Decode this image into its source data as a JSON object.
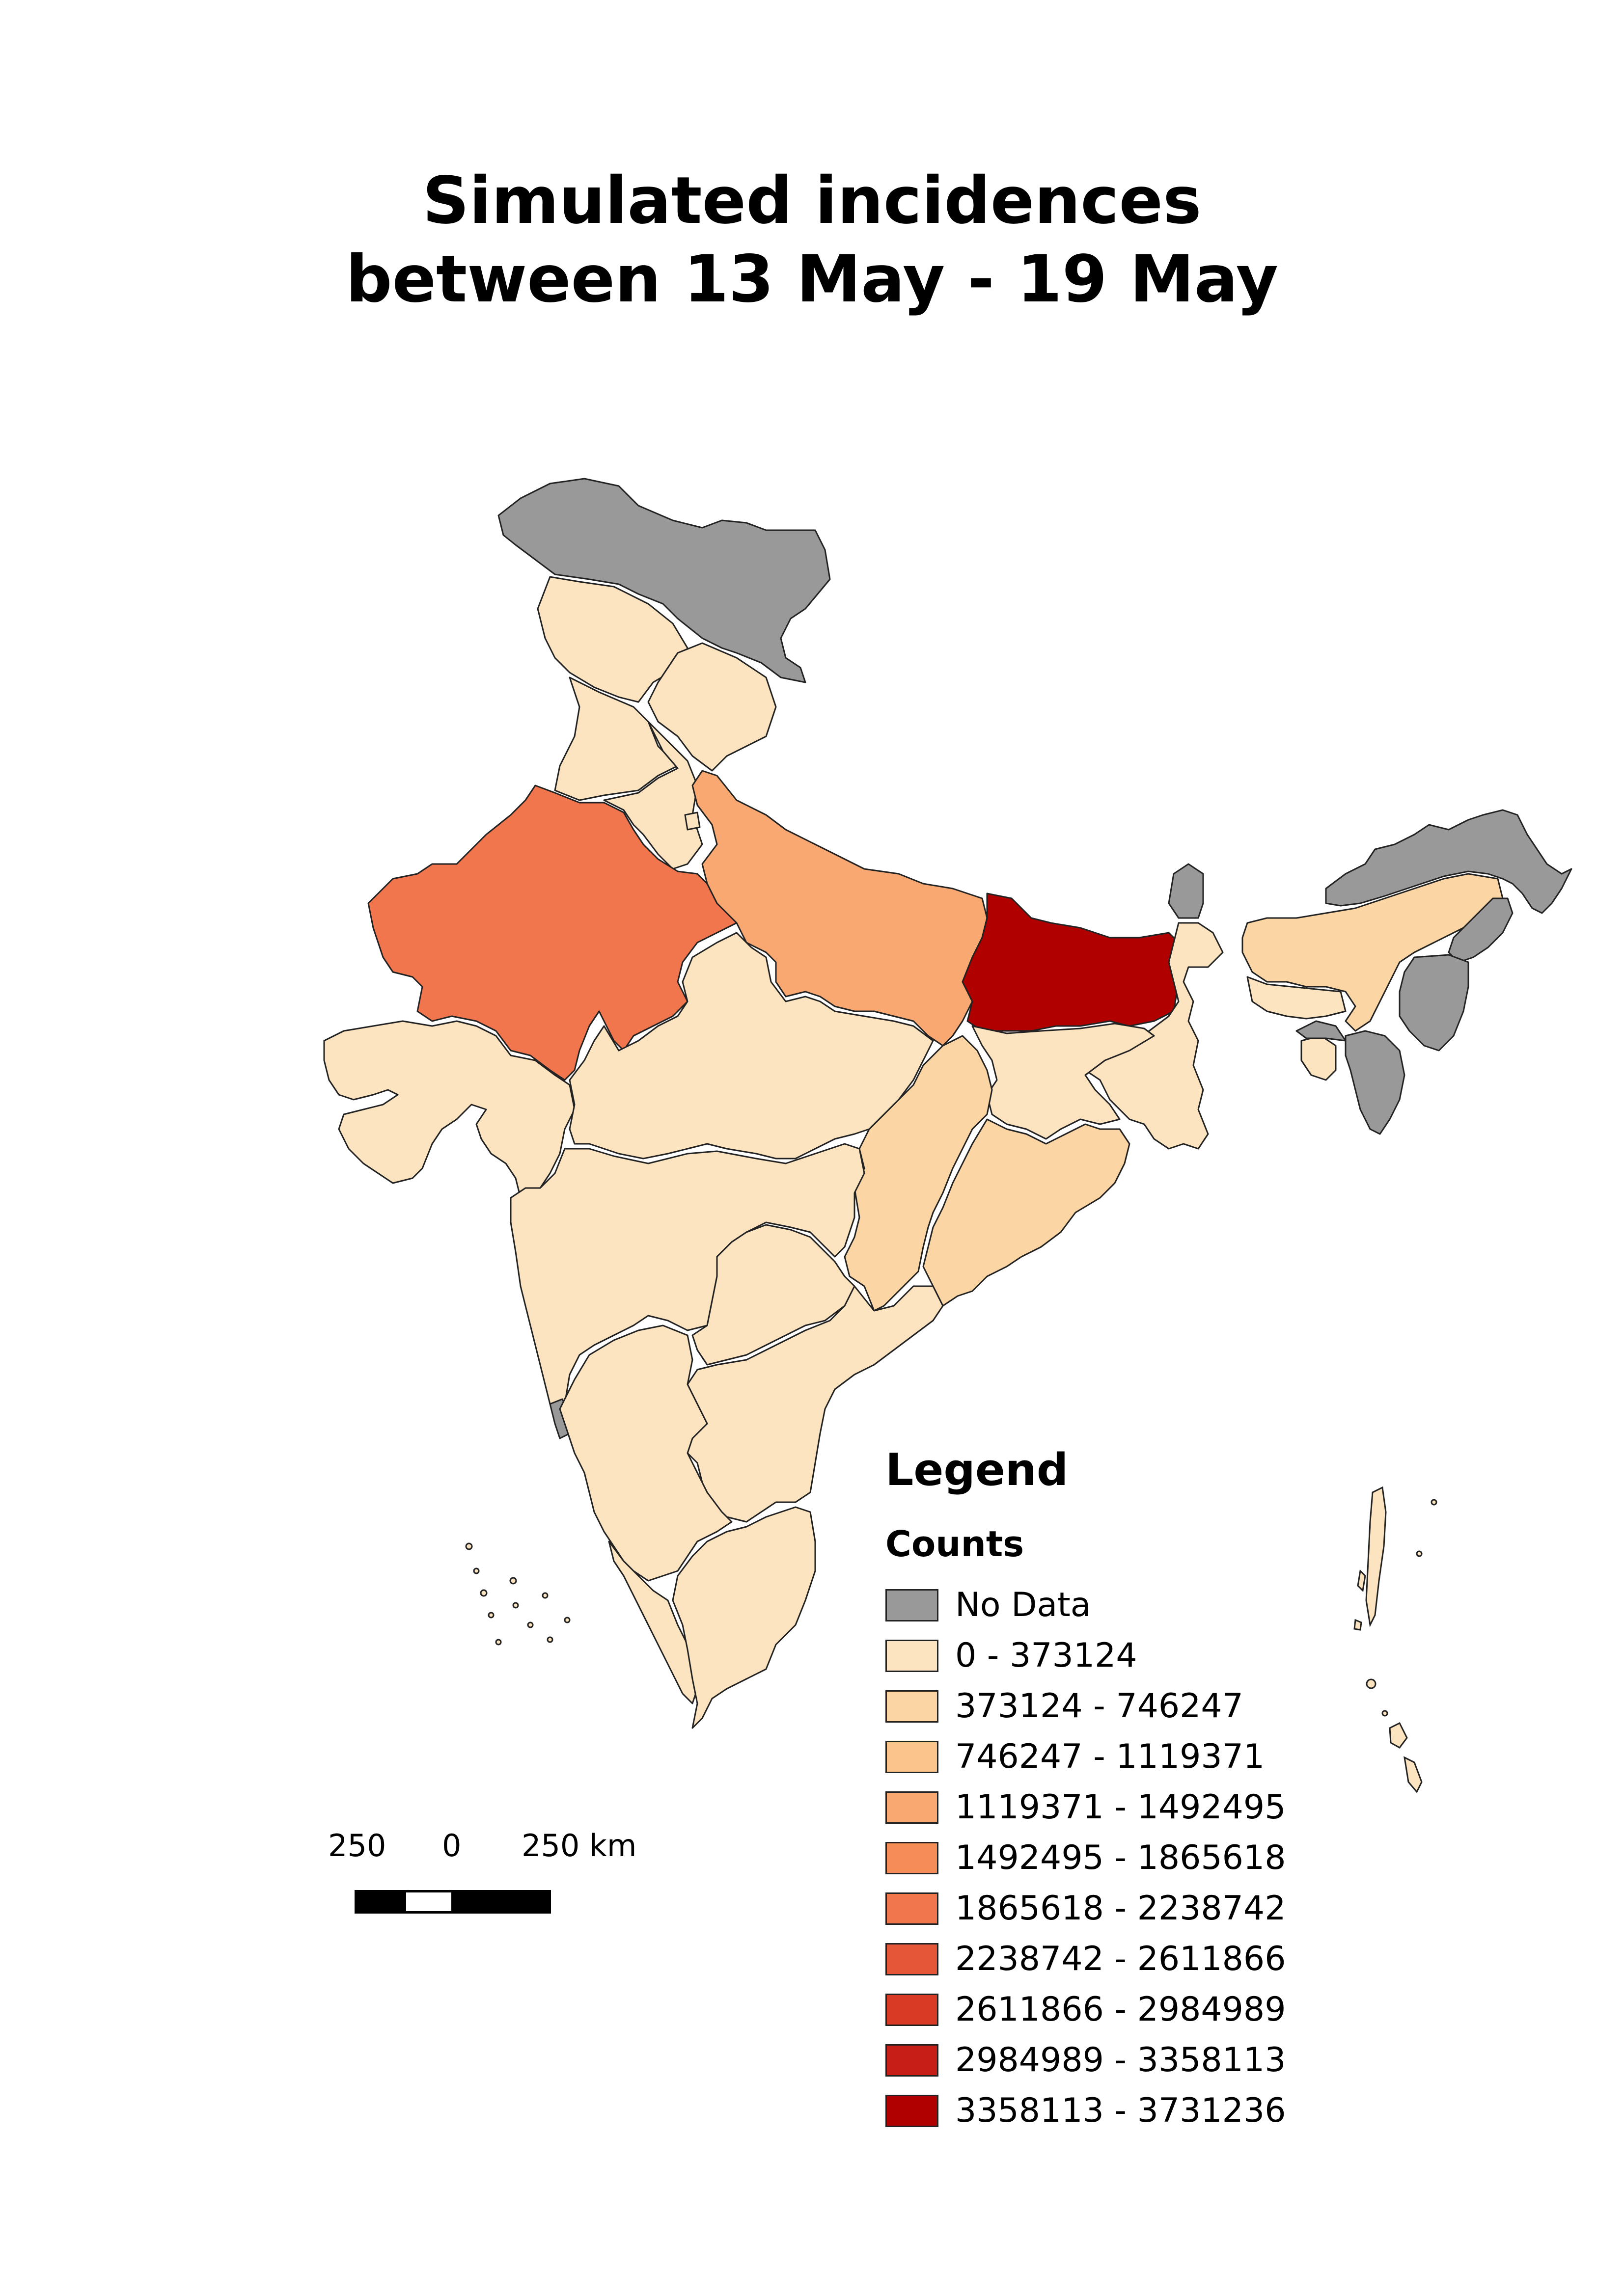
{
  "title": {
    "line1": "Simulated incidences",
    "line2": "between 13 May - 19 May"
  },
  "legend": {
    "heading": "Legend",
    "subheading": "Counts",
    "items": [
      {
        "label": "No Data",
        "color": "#999999"
      },
      {
        "label": "0 - 373124",
        "color": "#fde4c0"
      },
      {
        "label": "373124 - 746247",
        "color": "#fbd6a4"
      },
      {
        "label": "746247 - 1119371",
        "color": "#fbc48c"
      },
      {
        "label": "1119371 - 1492495",
        "color": "#f9a872"
      },
      {
        "label": "1492495 - 1865618",
        "color": "#f68c58"
      },
      {
        "label": "1865618 - 2238742",
        "color": "#f1754d"
      },
      {
        "label": "2238742 - 2611866",
        "color": "#e45637"
      },
      {
        "label": "2611866 - 2984989",
        "color": "#d93a26"
      },
      {
        "label": "2984989 - 3358113",
        "color": "#c71f17"
      },
      {
        "label": "3358113 - 3731236",
        "color": "#b00000"
      }
    ]
  },
  "scale_bar": {
    "left_label": "250",
    "center_label": "0",
    "right_label": "250 km"
  },
  "regions": [
    {
      "name": "Jammu and Kashmir",
      "class": "No Data"
    },
    {
      "name": "Himachal Pradesh",
      "class": "0 - 373124"
    },
    {
      "name": "Punjab",
      "class": "0 - 373124"
    },
    {
      "name": "Haryana",
      "class": "0 - 373124"
    },
    {
      "name": "Uttarakhand",
      "class": "0 - 373124"
    },
    {
      "name": "Rajasthan",
      "class": "1865618 - 2238742"
    },
    {
      "name": "Uttar Pradesh",
      "class": "1119371 - 1492495"
    },
    {
      "name": "Bihar",
      "class": "3358113 - 3731236"
    },
    {
      "name": "Sikkim",
      "class": "No Data"
    },
    {
      "name": "Assam",
      "class": "373124 - 746247"
    },
    {
      "name": "Arunachal Pradesh",
      "class": "No Data"
    },
    {
      "name": "Nagaland",
      "class": "No Data"
    },
    {
      "name": "Manipur",
      "class": "No Data"
    },
    {
      "name": "Mizoram",
      "class": "No Data"
    },
    {
      "name": "Meghalaya",
      "class": "0 - 373124"
    },
    {
      "name": "Tripura",
      "class": "0 - 373124"
    },
    {
      "name": "Gujarat",
      "class": "0 - 373124"
    },
    {
      "name": "Madhya Pradesh",
      "class": "0 - 373124"
    },
    {
      "name": "Chhattisgarh",
      "class": "373124 - 746247"
    },
    {
      "name": "Jharkhand",
      "class": "0 - 373124"
    },
    {
      "name": "West Bengal",
      "class": "0 - 373124"
    },
    {
      "name": "Odisha",
      "class": "373124 - 746247"
    },
    {
      "name": "Maharashtra",
      "class": "0 - 373124"
    },
    {
      "name": "Telangana",
      "class": "0 - 373124"
    },
    {
      "name": "Andhra Pradesh",
      "class": "0 - 373124"
    },
    {
      "name": "Karnataka",
      "class": "0 - 373124"
    },
    {
      "name": "Goa",
      "class": "No Data"
    },
    {
      "name": "Kerala",
      "class": "0 - 373124"
    },
    {
      "name": "Tamil Nadu",
      "class": "0 - 373124"
    },
    {
      "name": "Delhi",
      "class": "0 - 373124"
    }
  ]
}
